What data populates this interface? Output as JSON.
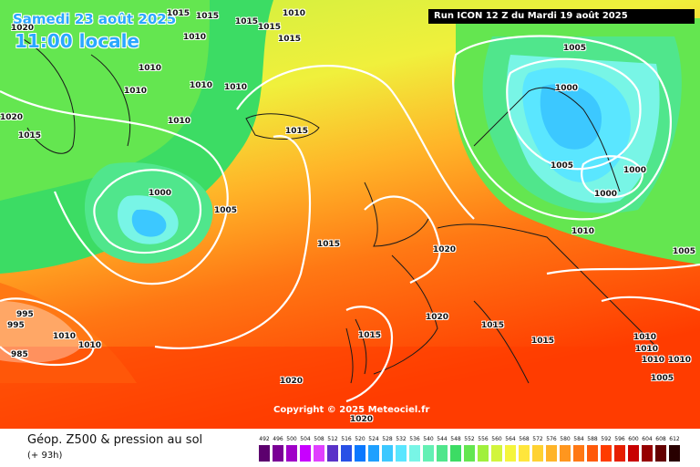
{
  "header": {
    "date": "Samedi 23 août 2025",
    "local_time": "11:00 locale",
    "run_info": "Run ICON 12 Z du Mardi 19 août 2025"
  },
  "copyright": "Copyright © 2025 Meteociel.fr",
  "footer": {
    "title": "Géop. Z500 & pression au sol",
    "subtitle": "(+ 93h)"
  },
  "scale": {
    "labels": [
      "492",
      "496",
      "500",
      "504",
      "508",
      "512",
      "516",
      "520",
      "524",
      "528",
      "532",
      "536",
      "540",
      "544",
      "548",
      "552",
      "556",
      "560",
      "564",
      "568",
      "572",
      "576",
      "580",
      "584",
      "588",
      "592",
      "596",
      "600",
      "604",
      "608",
      "612"
    ],
    "colors": [
      "#5c006e",
      "#7a0095",
      "#a000c8",
      "#c800ff",
      "#e040ff",
      "#5a32c8",
      "#2850e6",
      "#0a78ff",
      "#1ea0ff",
      "#3cc8ff",
      "#5ae6ff",
      "#78f5e6",
      "#64f0b4",
      "#50e68c",
      "#3cdc64",
      "#64e650",
      "#a0f03c",
      "#d2f53c",
      "#f5f53c",
      "#ffe63c",
      "#ffd232",
      "#ffb428",
      "#ff961e",
      "#ff7814",
      "#ff5a0a",
      "#ff3c00",
      "#e61e00",
      "#c80000",
      "#960000",
      "#640000",
      "#280000"
    ]
  },
  "isobar_labels": [
    "1015",
    "1015",
    "1015",
    "1010",
    "1015",
    "1015",
    "1020",
    "1010",
    "1010",
    "1010",
    "1010",
    "1010",
    "1015",
    "1010",
    "1020",
    "1015",
    "1000",
    "1005",
    "1015",
    "1005",
    "1000",
    "1005",
    "1000",
    "1000",
    "1010",
    "1005",
    "1020",
    "1020",
    "1015",
    "1015",
    "1015",
    "1020",
    "1010",
    "1010",
    "1010",
    "1010",
    "1005",
    "1020",
    "995",
    "995",
    "985",
    "1010",
    "1010"
  ],
  "legend_colors": {
    "contour": "#ffffff",
    "coast": "#1a1a1a",
    "low_center": "#60d8ff"
  }
}
